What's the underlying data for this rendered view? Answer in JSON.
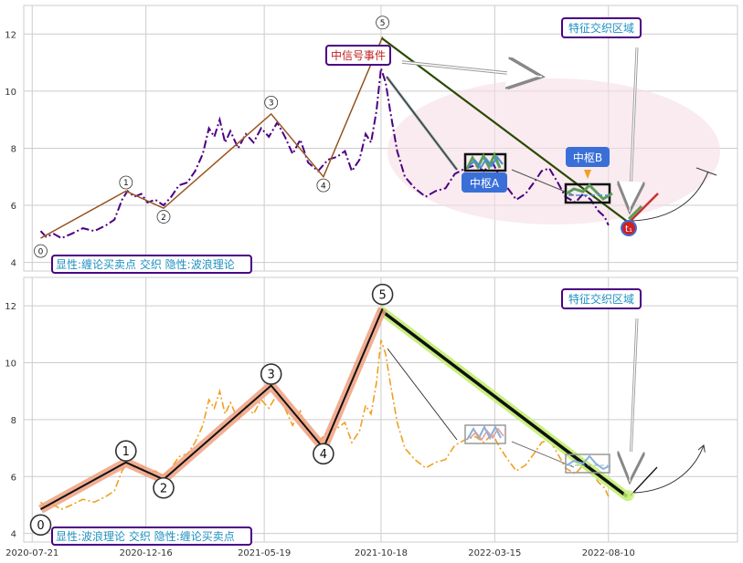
{
  "chart_data": [
    {
      "type": "line",
      "panel": "top",
      "legend_text": "显性:缠论买卖点 交织 隐性:波浪理论",
      "ylim": [
        3.7,
        13.0
      ],
      "yticks": [
        4,
        6,
        8,
        10,
        12
      ],
      "xlim": [
        "2020-07-10",
        "2023-01-25"
      ],
      "grid": true,
      "price_style": "dash-dot, indigo",
      "price_series": [
        [
          "2020-08-01",
          5.1
        ],
        [
          "2020-08-08",
          4.9
        ],
        [
          "2020-08-18",
          5.0
        ],
        [
          "2020-08-28",
          4.85
        ],
        [
          "2020-09-10",
          5.0
        ],
        [
          "2020-09-25",
          5.2
        ],
        [
          "2020-10-10",
          5.1
        ],
        [
          "2020-10-25",
          5.3
        ],
        [
          "2020-11-05",
          5.5
        ],
        [
          "2020-11-15",
          6.2
        ],
        [
          "2020-11-22",
          6.5
        ],
        [
          "2020-12-01",
          6.3
        ],
        [
          "2020-12-10",
          6.4
        ],
        [
          "2020-12-18",
          6.1
        ],
        [
          "2020-12-28",
          6.2
        ],
        [
          "2021-01-08",
          6.0
        ],
        [
          "2021-01-18",
          6.3
        ],
        [
          "2021-01-28",
          6.7
        ],
        [
          "2021-02-08",
          6.8
        ],
        [
          "2021-02-18",
          7.2
        ],
        [
          "2021-02-28",
          7.8
        ],
        [
          "2021-03-08",
          8.7
        ],
        [
          "2021-03-15",
          8.4
        ],
        [
          "2021-03-22",
          9.0
        ],
        [
          "2021-03-29",
          8.2
        ],
        [
          "2021-04-05",
          8.6
        ],
        [
          "2021-04-15",
          8.0
        ],
        [
          "2021-04-25",
          8.5
        ],
        [
          "2021-05-05",
          8.2
        ],
        [
          "2021-05-15",
          8.7
        ],
        [
          "2021-05-25",
          8.4
        ],
        [
          "2021-06-05",
          8.9
        ],
        [
          "2021-06-15",
          8.4
        ],
        [
          "2021-06-25",
          7.8
        ],
        [
          "2021-07-05",
          8.3
        ],
        [
          "2021-07-15",
          7.5
        ],
        [
          "2021-07-28",
          7.2
        ],
        [
          "2021-08-10",
          7.6
        ],
        [
          "2021-08-22",
          7.7
        ],
        [
          "2021-09-01",
          7.9
        ],
        [
          "2021-09-10",
          7.2
        ],
        [
          "2021-09-20",
          7.6
        ],
        [
          "2021-09-28",
          8.5
        ],
        [
          "2021-10-05",
          8.2
        ],
        [
          "2021-10-12",
          9.3
        ],
        [
          "2021-10-18",
          10.8
        ],
        [
          "2021-10-24",
          10.3
        ],
        [
          "2021-10-30",
          9.3
        ],
        [
          "2021-11-08",
          7.9
        ],
        [
          "2021-11-18",
          7.0
        ],
        [
          "2021-12-01",
          6.6
        ],
        [
          "2021-12-15",
          6.3
        ],
        [
          "2021-12-28",
          6.5
        ],
        [
          "2022-01-10",
          6.6
        ],
        [
          "2022-01-22",
          7.1
        ],
        [
          "2022-02-05",
          7.3
        ],
        [
          "2022-02-18",
          7.4
        ],
        [
          "2022-03-01",
          7.2
        ],
        [
          "2022-03-12",
          7.5
        ],
        [
          "2022-03-22",
          7.0
        ],
        [
          "2022-04-01",
          6.6
        ],
        [
          "2022-04-12",
          6.2
        ],
        [
          "2022-04-24",
          6.4
        ],
        [
          "2022-05-05",
          6.8
        ],
        [
          "2022-05-15",
          7.2
        ],
        [
          "2022-05-25",
          7.3
        ],
        [
          "2022-06-05",
          6.8
        ],
        [
          "2022-06-15",
          6.3
        ],
        [
          "2022-06-28",
          6.1
        ],
        [
          "2022-07-08",
          6.4
        ],
        [
          "2022-07-18",
          6.2
        ],
        [
          "2022-07-28",
          5.8
        ],
        [
          "2022-08-05",
          5.6
        ],
        [
          "2022-08-10",
          5.3
        ]
      ],
      "wave_points": [
        {
          "label": "0",
          "date": "2020-08-01",
          "value": 4.85,
          "mark_at": 4.4
        },
        {
          "label": "1",
          "date": "2020-11-20",
          "value": 6.5,
          "mark_at": 6.8
        },
        {
          "label": "2",
          "date": "2021-01-08",
          "value": 5.9,
          "mark_at": 5.6
        },
        {
          "label": "3",
          "date": "2021-05-28",
          "value": 9.2,
          "mark_at": 9.6
        },
        {
          "label": "4",
          "date": "2021-08-04",
          "value": 7.0,
          "mark_at": 6.7
        },
        {
          "label": "5",
          "date": "2021-10-20",
          "value": 11.9,
          "mark_at": 12.4
        }
      ],
      "annotations": {
        "event_label": "中信号事件",
        "feature_label": "特征交织区域",
        "zone_a_label": "中枢A",
        "zone_b_label": "中枢B",
        "endpoint_label": "t₁"
      }
    },
    {
      "type": "line",
      "panel": "bottom",
      "legend_text": "显性:波浪理论 交织 隐性:缠论买卖点",
      "ylim": [
        3.7,
        13.0
      ],
      "yticks": [
        4,
        6,
        8,
        10,
        12
      ],
      "xlim": [
        "2020-07-10",
        "2023-01-25"
      ],
      "grid": true,
      "price_style": "dash-dot, orange",
      "xticks": [
        "2020-07-21",
        "2020-12-16",
        "2021-05-19",
        "2021-10-18",
        "2022-03-15",
        "2022-08-10"
      ],
      "wave_points": [
        {
          "label": "0",
          "date": "2020-08-01",
          "value": 4.85,
          "mark_at": 4.3
        },
        {
          "label": "1",
          "date": "2020-11-20",
          "value": 6.5,
          "mark_at": 6.9
        },
        {
          "label": "2",
          "date": "2021-01-08",
          "value": 5.9,
          "mark_at": 5.6
        },
        {
          "label": "3",
          "date": "2021-05-28",
          "value": 9.2,
          "mark_at": 9.6
        },
        {
          "label": "4",
          "date": "2021-08-04",
          "value": 7.0,
          "mark_at": 6.8
        },
        {
          "label": "5",
          "date": "2021-10-20",
          "value": 11.9,
          "mark_at": 12.4
        }
      ],
      "annotations": {
        "feature_label": "特征交织区域"
      }
    }
  ],
  "colors": {
    "top_price": "#4b0082",
    "bottom_price": "#f0a020",
    "wave_top": "#c87030",
    "wave_bottom_glow": "#f0a080",
    "down_glow": "#c8f080",
    "grid": "#cccccc",
    "label_border": "#4b0082",
    "legend_text": "#1e90c0",
    "event_text": "#c02020",
    "zone_fill": "#3a6fd8",
    "ellipse": "#f5dde5"
  }
}
